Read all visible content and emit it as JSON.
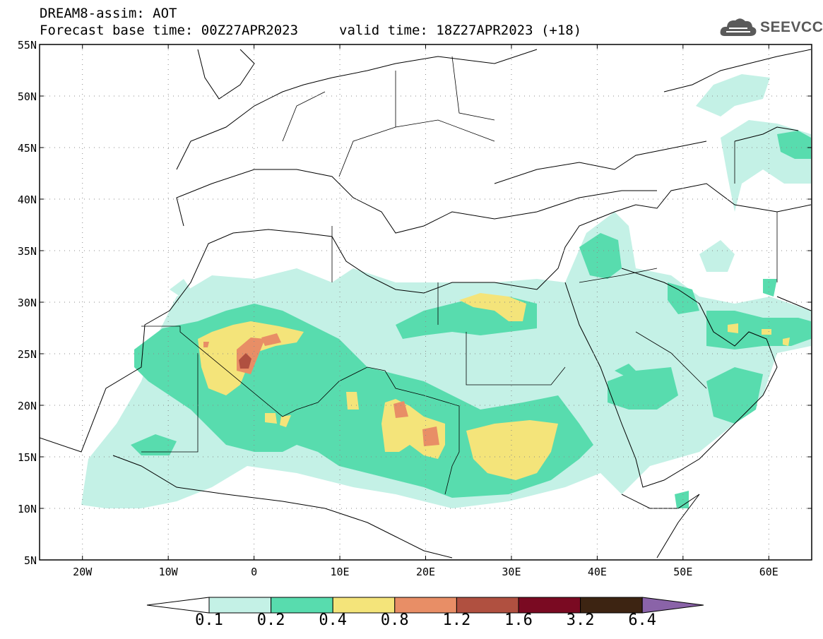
{
  "title": {
    "line1": "DREAM8-assim: AOT",
    "base_time": "Forecast base time: 00Z27APR2023",
    "valid_time": "valid time: 18Z27APR2023 (+18)"
  },
  "logo": {
    "text": "SEEVCCC",
    "icon": "cloud-logo-icon"
  },
  "map": {
    "lon_range": [
      -25,
      65
    ],
    "lat_range": [
      5,
      55
    ],
    "lat_ticks": [
      "5N",
      "10N",
      "15N",
      "20N",
      "25N",
      "30N",
      "35N",
      "40N",
      "45N",
      "50N",
      "55N"
    ],
    "lon_ticks": [
      "20W",
      "10W",
      "0",
      "10E",
      "20E",
      "30E",
      "40E",
      "50E",
      "60E"
    ],
    "grid": "dotted"
  },
  "colorbar": {
    "labels": [
      "0.1",
      "0.2",
      "0.4",
      "0.8",
      "1.2",
      "1.6",
      "3.2",
      "6.4"
    ],
    "colors": {
      "below": "#ffffff",
      "c1": "#c4f1e6",
      "c2": "#58dcae",
      "c3": "#f4e47a",
      "c4": "#e88e66",
      "c5": "#b05040",
      "c6": "#7a0a22",
      "c7": "#3d2412",
      "above": "#8a63a8"
    }
  }
}
